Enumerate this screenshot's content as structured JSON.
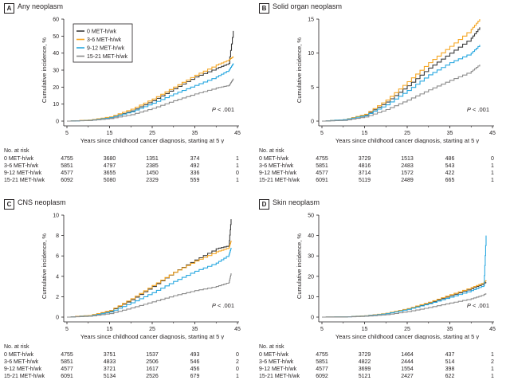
{
  "colors": {
    "0 MET-h/wk": "#3b3b3b",
    "3-6 MET-h/wk": "#f5a623",
    "9-12 MET-h/wk": "#29a8e0",
    "15-21 MET-h/wk": "#8c8c8c"
  },
  "shared": {
    "ylabel": "Cumulative incidence, %",
    "xlabel": "Years since childhood cancer diagnosis, starting at 5 y",
    "xticks": [
      5,
      15,
      25,
      35,
      45
    ],
    "risk_title": "No. at risk",
    "pvalue": "P < .001",
    "p_letter": "P",
    "p_rest": " < .001"
  },
  "chart_data": [
    {
      "type": "line",
      "letter": "A",
      "title": "Any neoplasm",
      "xlabel": "Years since childhood cancer diagnosis, starting at 5 y",
      "ylabel": "Cumulative incidence, %",
      "xlim": [
        5,
        45
      ],
      "ylim": [
        0,
        60
      ],
      "yticks": [
        0,
        10,
        20,
        30,
        40,
        50,
        60
      ],
      "legend": "top-left",
      "series": [
        {
          "name": "0 MET-h/wk",
          "x": [
            5,
            10,
            15,
            20,
            25,
            30,
            35,
            40,
            43,
            44
          ],
          "y": [
            0,
            0.5,
            2,
            6,
            12,
            19,
            26,
            31,
            34,
            53
          ]
        },
        {
          "name": "3-6 MET-h/wk",
          "x": [
            5,
            10,
            15,
            20,
            25,
            30,
            35,
            40,
            43,
            44
          ],
          "y": [
            0,
            0.6,
            2.5,
            7,
            13,
            20,
            27,
            33,
            36,
            38
          ]
        },
        {
          "name": "9-12 MET-h/wk",
          "x": [
            5,
            10,
            15,
            20,
            25,
            30,
            35,
            40,
            43,
            44
          ],
          "y": [
            0,
            0.4,
            2,
            5.5,
            10.5,
            16,
            21,
            26,
            30,
            34
          ]
        },
        {
          "name": "15-21 MET-h/wk",
          "x": [
            5,
            10,
            15,
            20,
            25,
            30,
            35,
            40,
            43,
            44
          ],
          "y": [
            0,
            0.3,
            1.5,
            3.8,
            7.5,
            12,
            16,
            19.5,
            21,
            25
          ]
        }
      ],
      "risk_table": [
        {
          "label": "0 MET-h/wk",
          "values": [
            "4755",
            "3680",
            "1351",
            "374",
            "1"
          ]
        },
        {
          "label": "3-6 MET-h/wk",
          "values": [
            "5851",
            "4797",
            "2385",
            "492",
            "1"
          ]
        },
        {
          "label": "9-12 MET-h/wk",
          "values": [
            "4577",
            "3655",
            "1450",
            "336",
            "0"
          ]
        },
        {
          "label": "15-21 MET-h/wk",
          "values": [
            "6092",
            "5080",
            "2329",
            "559",
            "1"
          ]
        }
      ]
    },
    {
      "type": "line",
      "letter": "B",
      "title": "Solid organ neoplasm",
      "xlabel": "Years since childhood cancer diagnosis, starting at 5 y",
      "ylabel": "Cumulative incidence, %",
      "xlim": [
        5,
        45
      ],
      "ylim": [
        0,
        15
      ],
      "yticks": [
        0,
        5,
        10,
        15
      ],
      "series": [
        {
          "name": "0 MET-h/wk",
          "x": [
            5,
            10,
            15,
            20,
            25,
            30,
            35,
            40,
            42
          ],
          "y": [
            0,
            0.2,
            0.9,
            2.8,
            5.2,
            7.8,
            10,
            12.2,
            13.8
          ]
        },
        {
          "name": "3-6 MET-h/wk",
          "x": [
            5,
            10,
            15,
            20,
            25,
            30,
            35,
            40,
            42
          ],
          "y": [
            0,
            0.2,
            1,
            3.1,
            5.8,
            8.6,
            11,
            13.5,
            15
          ]
        },
        {
          "name": "9-12 MET-h/wk",
          "x": [
            5,
            10,
            15,
            20,
            25,
            30,
            35,
            40,
            42
          ],
          "y": [
            0,
            0.2,
            0.8,
            2.4,
            4.5,
            6.8,
            8.6,
            10,
            11.2
          ]
        },
        {
          "name": "15-21 MET-h/wk",
          "x": [
            5,
            10,
            15,
            20,
            25,
            30,
            35,
            40,
            42
          ],
          "y": [
            0,
            0.1,
            0.6,
            1.7,
            3.1,
            4.6,
            6,
            7.3,
            8.3
          ]
        }
      ],
      "risk_table": [
        {
          "label": "0 MET-h/wk",
          "values": [
            "4755",
            "3729",
            "1513",
            "486",
            "0"
          ]
        },
        {
          "label": "3-6 MET-h/wk",
          "values": [
            "5851",
            "4816",
            "2483",
            "543",
            "1"
          ]
        },
        {
          "label": "9-12 MET-h/wk",
          "values": [
            "4577",
            "3714",
            "1572",
            "422",
            "1"
          ]
        },
        {
          "label": "15-21 MET-h/wk",
          "values": [
            "6091",
            "5119",
            "2489",
            "665",
            "1"
          ]
        }
      ]
    },
    {
      "type": "line",
      "letter": "C",
      "title": "CNS neoplasm",
      "xlabel": "Years since childhood cancer diagnosis, starting at 5 y",
      "ylabel": "Cumulative incidence, %",
      "xlim": [
        5,
        45
      ],
      "ylim": [
        0,
        10
      ],
      "yticks": [
        0,
        2,
        4,
        6,
        8,
        10
      ],
      "series": [
        {
          "name": "0 MET-h/wk",
          "x": [
            5,
            10,
            15,
            20,
            25,
            30,
            35,
            40,
            43,
            43.5
          ],
          "y": [
            0,
            0.15,
            0.6,
            1.7,
            3,
            4.4,
            5.6,
            6.7,
            7,
            9.6
          ]
        },
        {
          "name": "3-6 MET-h/wk",
          "x": [
            5,
            10,
            15,
            20,
            25,
            30,
            35,
            40,
            43,
            43.5
          ],
          "y": [
            0,
            0.15,
            0.65,
            1.8,
            3.1,
            4.4,
            5.5,
            6.4,
            6.8,
            7.5
          ]
        },
        {
          "name": "9-12 MET-h/wk",
          "x": [
            5,
            10,
            15,
            20,
            25,
            30,
            35,
            40,
            43,
            43.5
          ],
          "y": [
            0,
            0.1,
            0.5,
            1.4,
            2.4,
            3.5,
            4.5,
            5.3,
            6.1,
            6.8
          ]
        },
        {
          "name": "15-21 MET-h/wk",
          "x": [
            5,
            10,
            15,
            20,
            25,
            30,
            35,
            40,
            43,
            43.5
          ],
          "y": [
            0,
            0.08,
            0.35,
            0.9,
            1.5,
            2.1,
            2.6,
            3,
            3.4,
            4.3
          ]
        }
      ],
      "risk_table": [
        {
          "label": "0 MET-h/wk",
          "values": [
            "4755",
            "3751",
            "1537",
            "493",
            "0"
          ]
        },
        {
          "label": "3-6 MET-h/wk",
          "values": [
            "5851",
            "4833",
            "2506",
            "546",
            "2"
          ]
        },
        {
          "label": "9-12 MET-h/wk",
          "values": [
            "4577",
            "3721",
            "1617",
            "456",
            "0"
          ]
        },
        {
          "label": "15-21 MET-h/wk",
          "values": [
            "6091",
            "5134",
            "2526",
            "679",
            "1"
          ]
        }
      ]
    },
    {
      "type": "line",
      "letter": "D",
      "title": "Skin neoplasm",
      "xlabel": "Years since childhood cancer diagnosis, starting at 5 y",
      "ylabel": "Cumulative incidence, %",
      "xlim": [
        5,
        45
      ],
      "ylim": [
        0,
        50
      ],
      "yticks": [
        0,
        10,
        20,
        30,
        40,
        50
      ],
      "series": [
        {
          "name": "0 MET-h/wk",
          "x": [
            5,
            10,
            15,
            20,
            25,
            30,
            35,
            40,
            43,
            43.5
          ],
          "y": [
            0,
            0.1,
            0.6,
            1.8,
            4,
            7,
            10.5,
            14,
            16.5,
            17
          ]
        },
        {
          "name": "3-6 MET-h/wk",
          "x": [
            5,
            10,
            15,
            20,
            25,
            30,
            35,
            40,
            43,
            43.5
          ],
          "y": [
            0,
            0.1,
            0.6,
            1.9,
            4.2,
            7.3,
            11,
            14.5,
            17,
            18
          ]
        },
        {
          "name": "9-12 MET-h/wk",
          "x": [
            5,
            10,
            15,
            20,
            25,
            30,
            35,
            40,
            43,
            43.5
          ],
          "y": [
            0,
            0.1,
            0.5,
            1.7,
            3.8,
            6.6,
            9.8,
            13,
            15.5,
            40
          ]
        },
        {
          "name": "15-21 MET-h/wk",
          "x": [
            5,
            10,
            15,
            20,
            25,
            30,
            35,
            40,
            43,
            43.5
          ],
          "y": [
            0,
            0.05,
            0.4,
            1.2,
            2.7,
            4.7,
            6.9,
            9,
            11,
            11.5
          ]
        }
      ],
      "risk_table": [
        {
          "label": "0 MET-h/wk",
          "values": [
            "4755",
            "3729",
            "1464",
            "437",
            "1"
          ]
        },
        {
          "label": "3-6 MET-h/wk",
          "values": [
            "5851",
            "4822",
            "2444",
            "514",
            "2"
          ]
        },
        {
          "label": "9-12 MET-h/wk",
          "values": [
            "4577",
            "3699",
            "1554",
            "398",
            "1"
          ]
        },
        {
          "label": "15-21 MET-h/wk",
          "values": [
            "6092",
            "5121",
            "2427",
            "622",
            "1"
          ]
        }
      ]
    }
  ]
}
